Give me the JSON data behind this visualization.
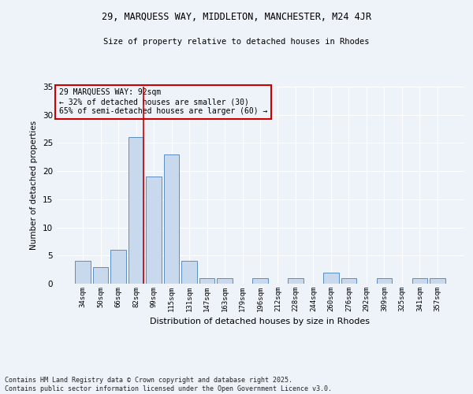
{
  "title1": "29, MARQUESS WAY, MIDDLETON, MANCHESTER, M24 4JR",
  "title2": "Size of property relative to detached houses in Rhodes",
  "xlabel": "Distribution of detached houses by size in Rhodes",
  "ylabel": "Number of detached properties",
  "footer": "Contains HM Land Registry data © Crown copyright and database right 2025.\nContains public sector information licensed under the Open Government Licence v3.0.",
  "categories": [
    "34sqm",
    "50sqm",
    "66sqm",
    "82sqm",
    "99sqm",
    "115sqm",
    "131sqm",
    "147sqm",
    "163sqm",
    "179sqm",
    "196sqm",
    "212sqm",
    "228sqm",
    "244sqm",
    "260sqm",
    "276sqm",
    "292sqm",
    "309sqm",
    "325sqm",
    "341sqm",
    "357sqm"
  ],
  "values": [
    4,
    3,
    6,
    26,
    19,
    23,
    4,
    1,
    1,
    0,
    1,
    0,
    1,
    0,
    2,
    1,
    0,
    1,
    0,
    1,
    1
  ],
  "bar_color": "#c8d9ed",
  "bar_edge_color": "#5a8fc3",
  "property_line_color": "#cc0000",
  "annotation_text": "29 MARQUESS WAY: 92sqm\n← 32% of detached houses are smaller (30)\n65% of semi-detached houses are larger (60) →",
  "annotation_box_color": "#cc0000",
  "background_color": "#eef3f9",
  "grid_color": "#ffffff",
  "ylim": [
    0,
    35
  ],
  "yticks": [
    0,
    5,
    10,
    15,
    20,
    25,
    30,
    35
  ]
}
